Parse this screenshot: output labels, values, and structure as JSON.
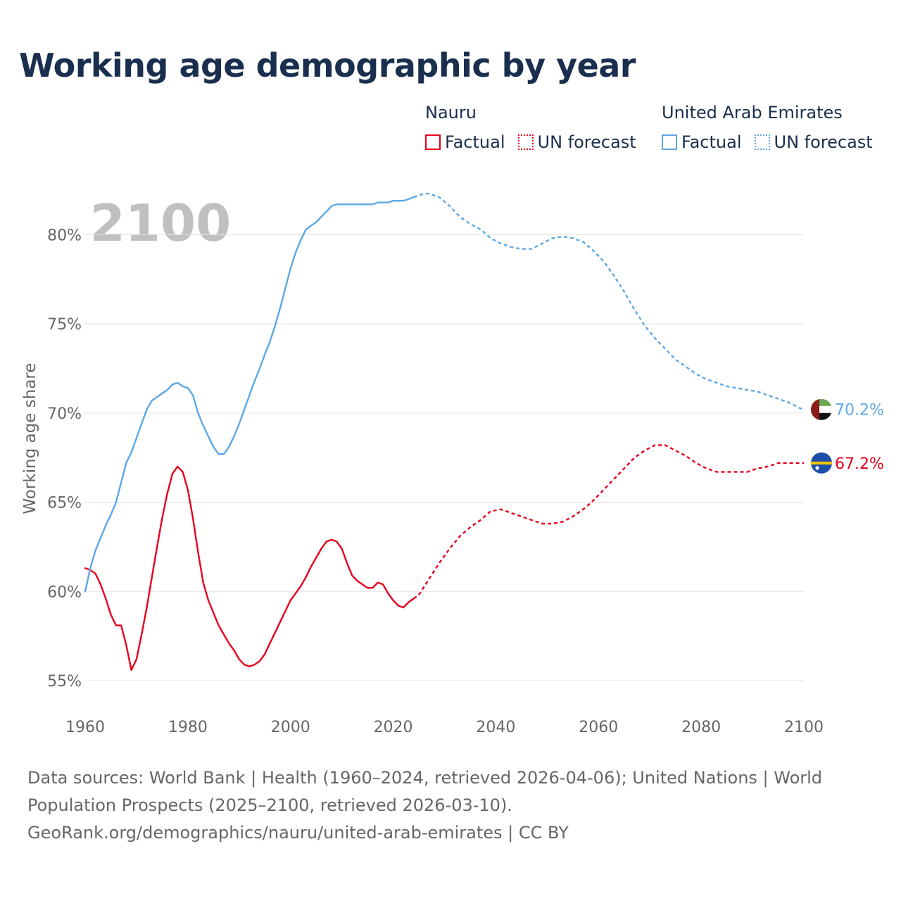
{
  "title": "Working age demographic by year",
  "legend": {
    "groups": [
      {
        "name": "Nauru",
        "color": "#e8001c",
        "factual_label": "Factual",
        "forecast_label": "UN forecast"
      },
      {
        "name": "United Arab Emirates",
        "color": "#5da8e6",
        "factual_label": "Factual",
        "forecast_label": "UN forecast"
      }
    ]
  },
  "footer": {
    "line1": "Data sources: World Bank | Health (1960–2024, retrieved 2026-04-06); United Nations | World",
    "line2": "Population Prospects (2025–2100, retrieved 2026-03-10).",
    "line3": "GeoRank.org/demographics/nauru/united-arab-emirates | CC BY"
  },
  "chart_data": {
    "type": "line",
    "title": "Working age demographic by year",
    "year_overlay": "2100",
    "xlabel": "",
    "ylabel": "Working age share",
    "xlim": [
      1960,
      2100
    ],
    "ylim": [
      53.5,
      82.5
    ],
    "x_ticks": [
      1960,
      1980,
      2000,
      2020,
      2040,
      2060,
      2080,
      2100
    ],
    "y_ticks": [
      55,
      60,
      65,
      70,
      75,
      80
    ],
    "y_tick_labels": [
      "55%",
      "60%",
      "65%",
      "70%",
      "75%",
      "80%"
    ],
    "grid": true,
    "forecast_start": 2024,
    "series": [
      {
        "name": "Nauru",
        "color": "#e8001c",
        "end_label": "67.2%",
        "flag": "nauru",
        "points": [
          [
            1960,
            61.3
          ],
          [
            1961,
            61.2
          ],
          [
            1962,
            61.0
          ],
          [
            1963,
            60.4
          ],
          [
            1964,
            59.6
          ],
          [
            1965,
            58.7
          ],
          [
            1966,
            58.1
          ],
          [
            1967,
            58.1
          ],
          [
            1968,
            57.0
          ],
          [
            1969,
            55.6
          ],
          [
            1970,
            56.2
          ],
          [
            1971,
            57.6
          ],
          [
            1972,
            59.1
          ],
          [
            1973,
            60.8
          ],
          [
            1974,
            62.5
          ],
          [
            1975,
            64.1
          ],
          [
            1976,
            65.5
          ],
          [
            1977,
            66.6
          ],
          [
            1978,
            67.0
          ],
          [
            1979,
            66.7
          ],
          [
            1980,
            65.7
          ],
          [
            1981,
            64.1
          ],
          [
            1982,
            62.2
          ],
          [
            1983,
            60.5
          ],
          [
            1984,
            59.5
          ],
          [
            1985,
            58.8
          ],
          [
            1986,
            58.1
          ],
          [
            1987,
            57.6
          ],
          [
            1988,
            57.1
          ],
          [
            1989,
            56.7
          ],
          [
            1990,
            56.2
          ],
          [
            1991,
            55.9
          ],
          [
            1992,
            55.8
          ],
          [
            1993,
            55.9
          ],
          [
            1994,
            56.1
          ],
          [
            1995,
            56.5
          ],
          [
            1996,
            57.1
          ],
          [
            1997,
            57.7
          ],
          [
            1998,
            58.3
          ],
          [
            1999,
            58.9
          ],
          [
            2000,
            59.5
          ],
          [
            2001,
            59.9
          ],
          [
            2002,
            60.3
          ],
          [
            2003,
            60.8
          ],
          [
            2004,
            61.4
          ],
          [
            2005,
            61.9
          ],
          [
            2006,
            62.4
          ],
          [
            2007,
            62.8
          ],
          [
            2008,
            62.9
          ],
          [
            2009,
            62.8
          ],
          [
            2010,
            62.4
          ],
          [
            2011,
            61.6
          ],
          [
            2012,
            60.9
          ],
          [
            2013,
            60.6
          ],
          [
            2014,
            60.4
          ],
          [
            2015,
            60.2
          ],
          [
            2016,
            60.2
          ],
          [
            2017,
            60.5
          ],
          [
            2018,
            60.4
          ],
          [
            2019,
            59.9
          ],
          [
            2020,
            59.5
          ],
          [
            2021,
            59.2
          ],
          [
            2022,
            59.1
          ],
          [
            2023,
            59.4
          ],
          [
            2024,
            59.6
          ],
          [
            2025,
            59.8
          ],
          [
            2027,
            60.7
          ],
          [
            2029,
            61.6
          ],
          [
            2031,
            62.4
          ],
          [
            2033,
            63.1
          ],
          [
            2035,
            63.6
          ],
          [
            2037,
            64.0
          ],
          [
            2039,
            64.5
          ],
          [
            2041,
            64.6
          ],
          [
            2043,
            64.4
          ],
          [
            2045,
            64.2
          ],
          [
            2047,
            64.0
          ],
          [
            2049,
            63.8
          ],
          [
            2051,
            63.8
          ],
          [
            2053,
            63.9
          ],
          [
            2055,
            64.2
          ],
          [
            2057,
            64.6
          ],
          [
            2059,
            65.1
          ],
          [
            2061,
            65.7
          ],
          [
            2063,
            66.3
          ],
          [
            2065,
            66.9
          ],
          [
            2067,
            67.5
          ],
          [
            2069,
            67.9
          ],
          [
            2071,
            68.2
          ],
          [
            2073,
            68.2
          ],
          [
            2075,
            67.9
          ],
          [
            2077,
            67.6
          ],
          [
            2079,
            67.2
          ],
          [
            2081,
            66.9
          ],
          [
            2083,
            66.7
          ],
          [
            2085,
            66.7
          ],
          [
            2087,
            66.7
          ],
          [
            2089,
            66.7
          ],
          [
            2091,
            66.9
          ],
          [
            2093,
            67.0
          ],
          [
            2095,
            67.2
          ],
          [
            2097,
            67.2
          ],
          [
            2100,
            67.2
          ]
        ]
      },
      {
        "name": "United Arab Emirates",
        "color": "#5da8e6",
        "end_label": "70.2%",
        "flag": "uae",
        "points": [
          [
            1960,
            60.0
          ],
          [
            1961,
            61.3
          ],
          [
            1962,
            62.3
          ],
          [
            1963,
            63.0
          ],
          [
            1964,
            63.7
          ],
          [
            1965,
            64.3
          ],
          [
            1966,
            65.0
          ],
          [
            1967,
            66.1
          ],
          [
            1968,
            67.2
          ],
          [
            1969,
            67.8
          ],
          [
            1970,
            68.6
          ],
          [
            1971,
            69.4
          ],
          [
            1972,
            70.2
          ],
          [
            1973,
            70.7
          ],
          [
            1974,
            70.9
          ],
          [
            1975,
            71.1
          ],
          [
            1976,
            71.3
          ],
          [
            1977,
            71.6
          ],
          [
            1978,
            71.7
          ],
          [
            1979,
            71.5
          ],
          [
            1980,
            71.4
          ],
          [
            1981,
            71.0
          ],
          [
            1982,
            70.0
          ],
          [
            1983,
            69.3
          ],
          [
            1984,
            68.7
          ],
          [
            1985,
            68.1
          ],
          [
            1986,
            67.7
          ],
          [
            1987,
            67.7
          ],
          [
            1988,
            68.1
          ],
          [
            1989,
            68.7
          ],
          [
            1990,
            69.4
          ],
          [
            1991,
            70.2
          ],
          [
            1992,
            71.0
          ],
          [
            1993,
            71.8
          ],
          [
            1994,
            72.5
          ],
          [
            1995,
            73.3
          ],
          [
            1996,
            74.0
          ],
          [
            1997,
            74.9
          ],
          [
            1998,
            75.9
          ],
          [
            1999,
            77.0
          ],
          [
            2000,
            78.1
          ],
          [
            2001,
            79.0
          ],
          [
            2002,
            79.7
          ],
          [
            2003,
            80.3
          ],
          [
            2004,
            80.5
          ],
          [
            2005,
            80.7
          ],
          [
            2006,
            81.0
          ],
          [
            2007,
            81.3
          ],
          [
            2008,
            81.6
          ],
          [
            2009,
            81.7
          ],
          [
            2010,
            81.7
          ],
          [
            2011,
            81.7
          ],
          [
            2012,
            81.7
          ],
          [
            2013,
            81.7
          ],
          [
            2014,
            81.7
          ],
          [
            2015,
            81.7
          ],
          [
            2016,
            81.7
          ],
          [
            2017,
            81.8
          ],
          [
            2018,
            81.8
          ],
          [
            2019,
            81.8
          ],
          [
            2020,
            81.9
          ],
          [
            2021,
            81.9
          ],
          [
            2022,
            81.9
          ],
          [
            2023,
            82.0
          ],
          [
            2024,
            82.1
          ],
          [
            2025,
            82.2
          ],
          [
            2026,
            82.3
          ],
          [
            2027,
            82.3
          ],
          [
            2029,
            82.1
          ],
          [
            2031,
            81.6
          ],
          [
            2033,
            81.0
          ],
          [
            2035,
            80.6
          ],
          [
            2037,
            80.3
          ],
          [
            2039,
            79.8
          ],
          [
            2041,
            79.5
          ],
          [
            2043,
            79.3
          ],
          [
            2045,
            79.2
          ],
          [
            2047,
            79.2
          ],
          [
            2049,
            79.5
          ],
          [
            2051,
            79.8
          ],
          [
            2053,
            79.9
          ],
          [
            2055,
            79.8
          ],
          [
            2057,
            79.6
          ],
          [
            2059,
            79.1
          ],
          [
            2061,
            78.5
          ],
          [
            2063,
            77.7
          ],
          [
            2065,
            76.8
          ],
          [
            2067,
            75.8
          ],
          [
            2069,
            74.9
          ],
          [
            2071,
            74.2
          ],
          [
            2073,
            73.6
          ],
          [
            2075,
            73.0
          ],
          [
            2077,
            72.6
          ],
          [
            2079,
            72.2
          ],
          [
            2081,
            71.9
          ],
          [
            2083,
            71.7
          ],
          [
            2085,
            71.5
          ],
          [
            2087,
            71.4
          ],
          [
            2089,
            71.3
          ],
          [
            2091,
            71.2
          ],
          [
            2093,
            71.0
          ],
          [
            2095,
            70.8
          ],
          [
            2097,
            70.6
          ],
          [
            2099,
            70.3
          ],
          [
            2100,
            70.2
          ]
        ]
      }
    ]
  }
}
